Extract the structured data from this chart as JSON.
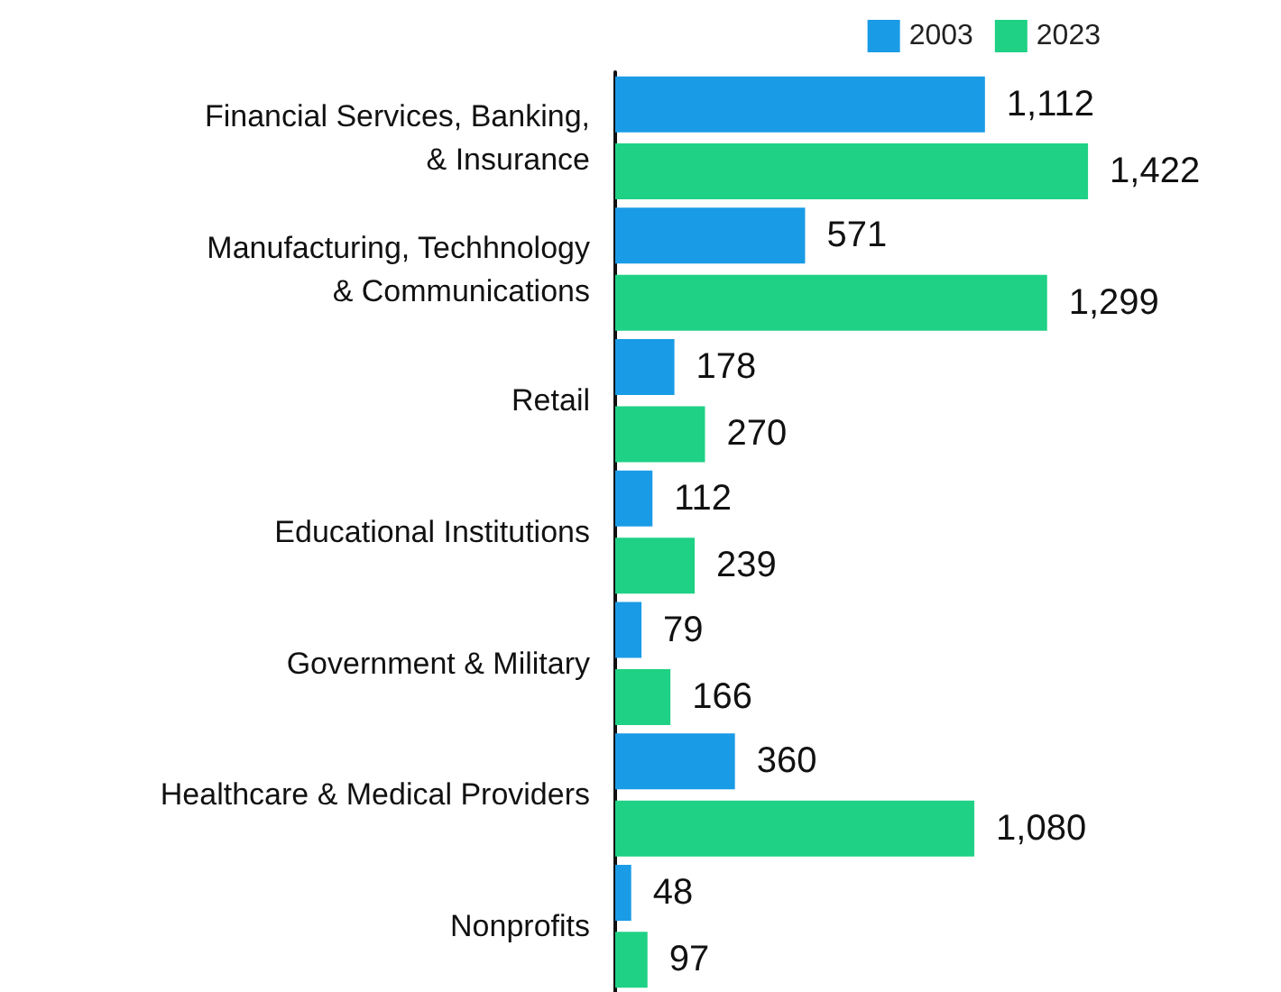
{
  "chart_data": {
    "type": "bar",
    "orientation": "horizontal",
    "categories": [
      "Financial Services, Banking,\n& Insurance",
      "Manufacturing, Techhnology\n& Communications",
      "Retail",
      "Educational Institutions",
      "Government & Military",
      "Healthcare & Medical Providers",
      "Nonprofits"
    ],
    "series": [
      {
        "name": "2003",
        "color": "#1a9be6",
        "values": [
          1112,
          571,
          178,
          112,
          79,
          360,
          48
        ],
        "value_labels": [
          "1,112",
          "571",
          "178",
          "112",
          "79",
          "360",
          "48"
        ]
      },
      {
        "name": "2023",
        "color": "#1fd184",
        "values": [
          1422,
          1299,
          270,
          239,
          166,
          1080,
          97
        ],
        "value_labels": [
          "1,422",
          "1,299",
          "270",
          "239",
          "166",
          "1,080",
          "97"
        ]
      }
    ],
    "legend": "top right"
  }
}
